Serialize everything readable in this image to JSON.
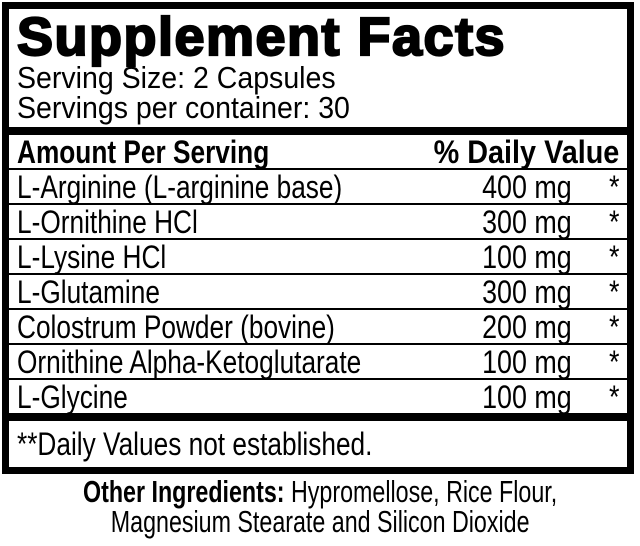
{
  "label": {
    "title": "Supplement Facts",
    "serving_size": "Serving Size: 2 Capsules",
    "servings_per_container": "Servings per container: 30",
    "columns": {
      "amount_header": "Amount Per Serving",
      "daily_value_header": "% Daily Value"
    },
    "rows": [
      {
        "name": "L-Arginine (L-arginine base)",
        "amount": "400 mg",
        "daily_value": "*"
      },
      {
        "name": "L-Ornithine HCl",
        "amount": "300 mg",
        "daily_value": "*"
      },
      {
        "name": "L-Lysine HCl",
        "amount": "100 mg",
        "daily_value": "*"
      },
      {
        "name": "L-Glutamine",
        "amount": "300 mg",
        "daily_value": "*"
      },
      {
        "name": "Colostrum Powder (bovine)",
        "amount": "200 mg",
        "daily_value": "*"
      },
      {
        "name": "Ornithine Alpha-Ketoglutarate",
        "amount": "100 mg",
        "daily_value": "*"
      },
      {
        "name": "L-Glycine",
        "amount": "100 mg",
        "daily_value": "*"
      }
    ],
    "footnote": "**Daily Values not established.",
    "other_ingredients": {
      "prefix": "Other Ingredients:",
      "line1_rest": " Hypromellose, Rice Flour,",
      "line2": "Magnesium Stearate and Silicon Dioxide"
    },
    "colors": {
      "text": "#000000",
      "background": "#ffffff",
      "rule": "#000000"
    }
  }
}
